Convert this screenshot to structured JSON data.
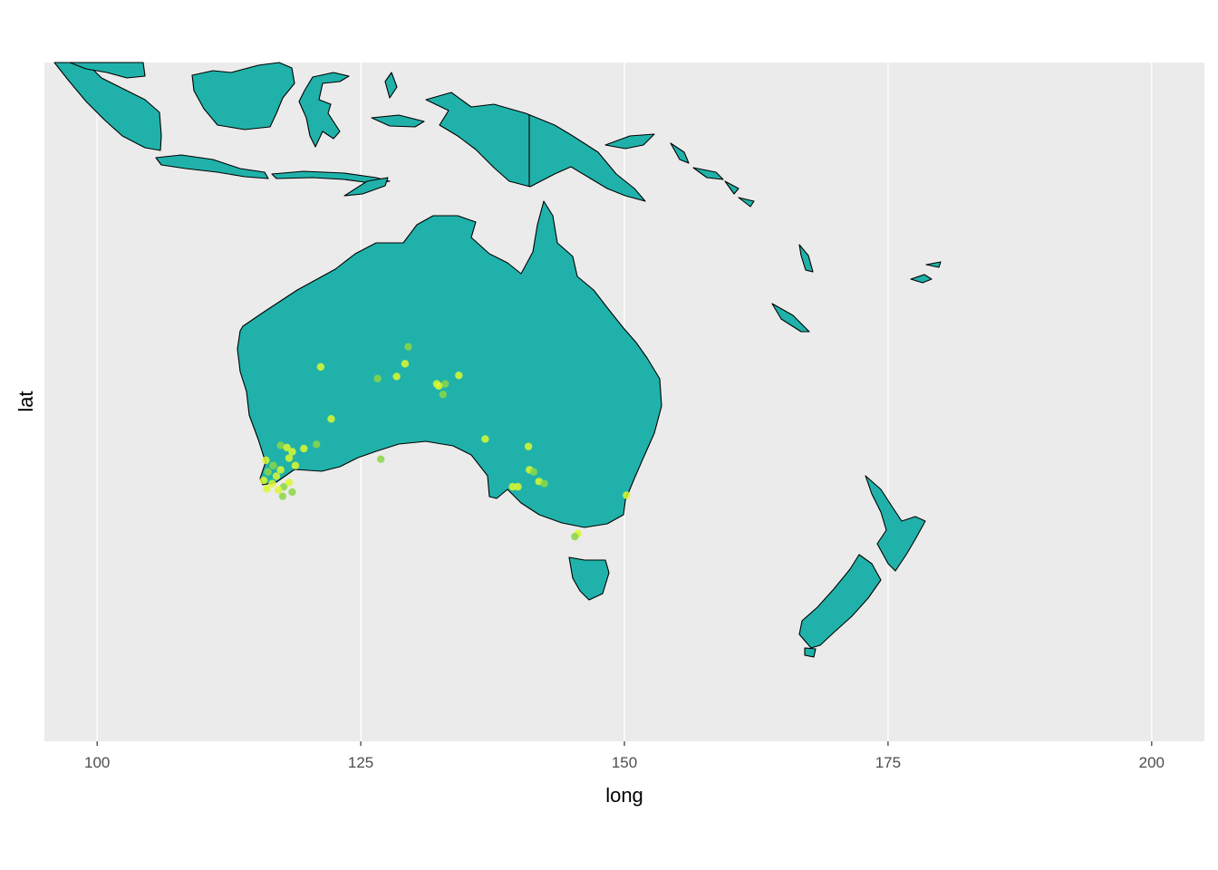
{
  "colors": {
    "panel_background": "#EBEBEB",
    "grid": "#FFFFFF",
    "land_fill": "#20B2AA",
    "land_border": "#000000",
    "point_fill_low": "#8BD646",
    "point_fill_high": "#DDF730"
  },
  "chart_data": {
    "type": "scatter",
    "subtype": "map with point occurrences",
    "xlabel": "long",
    "ylabel": "lat",
    "xlim": [
      95,
      205
    ],
    "ylim": [
      -52,
      12
    ],
    "x_ticks": [
      100,
      125,
      150,
      175,
      200
    ],
    "x_tick_labels": [
      "100",
      "125",
      "150",
      "175",
      "200"
    ],
    "y_tick_labels": [],
    "grid": "vertical major gridlines only",
    "legend": "none",
    "points": [
      {
        "long": 129.5,
        "lat": -14.8
      },
      {
        "long": 129.2,
        "lat": -16.4
      },
      {
        "long": 121.2,
        "lat": -16.7
      },
      {
        "long": 126.6,
        "lat": -17.8
      },
      {
        "long": 128.4,
        "lat": -17.6
      },
      {
        "long": 134.3,
        "lat": -17.5
      },
      {
        "long": 133.0,
        "lat": -18.3
      },
      {
        "long": 132.4,
        "lat": -18.5
      },
      {
        "long": 132.2,
        "lat": -18.3
      },
      {
        "long": 132.8,
        "lat": -19.3
      },
      {
        "long": 122.2,
        "lat": -21.6
      },
      {
        "long": 136.8,
        "lat": -23.5
      },
      {
        "long": 120.8,
        "lat": -24.0
      },
      {
        "long": 140.9,
        "lat": -24.2
      },
      {
        "long": 119.6,
        "lat": -24.4
      },
      {
        "long": 117.4,
        "lat": -24.1
      },
      {
        "long": 118.0,
        "lat": -24.3
      },
      {
        "long": 118.5,
        "lat": -24.7
      },
      {
        "long": 126.9,
        "lat": -25.4
      },
      {
        "long": 118.2,
        "lat": -25.3
      },
      {
        "long": 116.0,
        "lat": -25.5
      },
      {
        "long": 116.7,
        "lat": -26.0
      },
      {
        "long": 117.4,
        "lat": -26.4
      },
      {
        "long": 118.8,
        "lat": -26.0
      },
      {
        "long": 116.2,
        "lat": -26.6
      },
      {
        "long": 117.0,
        "lat": -27.0
      },
      {
        "long": 141.0,
        "lat": -26.4
      },
      {
        "long": 141.4,
        "lat": -26.6
      },
      {
        "long": 115.8,
        "lat": -27.4
      },
      {
        "long": 116.6,
        "lat": -27.7
      },
      {
        "long": 117.7,
        "lat": -28.0
      },
      {
        "long": 118.2,
        "lat": -27.6
      },
      {
        "long": 141.9,
        "lat": -27.5
      },
      {
        "long": 142.4,
        "lat": -27.7
      },
      {
        "long": 116.1,
        "lat": -28.2
      },
      {
        "long": 117.2,
        "lat": -28.3
      },
      {
        "long": 118.5,
        "lat": -28.5
      },
      {
        "long": 139.4,
        "lat": -28.0
      },
      {
        "long": 139.9,
        "lat": -28.0
      },
      {
        "long": 117.6,
        "lat": -28.9
      },
      {
        "long": 150.2,
        "lat": -28.8
      },
      {
        "long": 145.6,
        "lat": -32.4
      },
      {
        "long": 145.3,
        "lat": -32.7
      }
    ]
  }
}
